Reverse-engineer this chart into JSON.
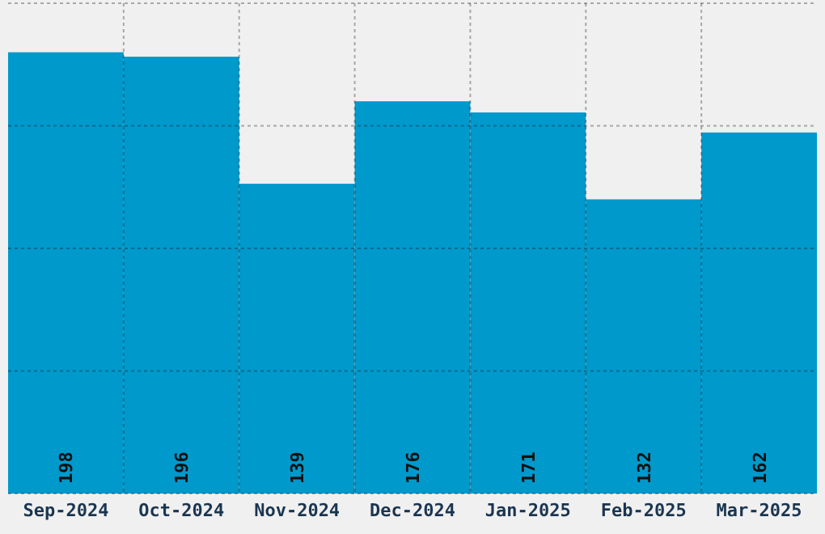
{
  "chart_data": {
    "type": "bar",
    "categories": [
      "Sep-2024",
      "Oct-2024",
      "Nov-2024",
      "Dec-2024",
      "Jan-2025",
      "Feb-2025",
      "Mar-2025"
    ],
    "values": [
      198,
      196,
      139,
      176,
      171,
      132,
      162
    ],
    "color": "#0099cc",
    "ylim": [
      0,
      220
    ],
    "yticks": [
      {
        "value": 0,
        "label": null
      },
      {
        "value": 55,
        "label": null
      },
      {
        "value": 110,
        "label": null
      },
      {
        "value": 165,
        "label": null
      },
      {
        "value": 220,
        "label": null
      }
    ],
    "tick_labels": "x",
    "grid": true,
    "data_labels": true
  }
}
